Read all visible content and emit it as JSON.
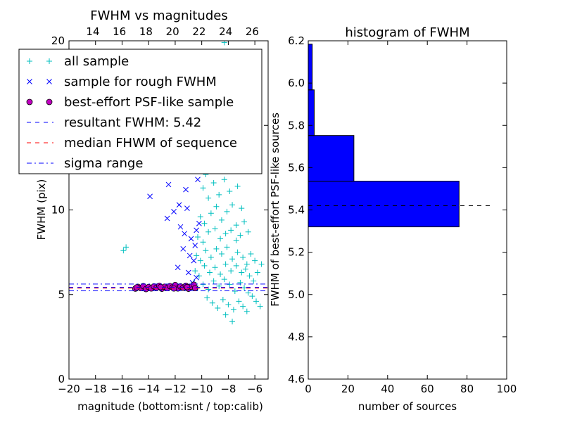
{
  "chart_data": [
    {
      "type": "scatter",
      "title": "FWHM vs magnitudes",
      "xlabel": "magnitude (bottom:isnt / top:calib)",
      "ylabel": "FWHM (pix)",
      "xlim": [
        -20,
        -5
      ],
      "ylim": [
        0,
        20
      ],
      "x_ticks": [
        -20,
        -18,
        -16,
        -14,
        -12,
        -10,
        -8,
        -6
      ],
      "x_tick_labels": [
        "−20",
        "−18",
        "−16",
        "−14",
        "−12",
        "−10",
        "−8",
        "−6"
      ],
      "y_ticks": [
        0,
        5,
        10,
        15,
        20
      ],
      "y_tick_labels": [
        "0",
        "5",
        "10",
        "15",
        "20"
      ],
      "top_axis_ticks": [
        14,
        16,
        18,
        20,
        22,
        24,
        26
      ],
      "top_axis_offset": 32.2,
      "legend": {
        "position": "upper-left",
        "entries": [
          {
            "label": "all sample",
            "marker": "plus",
            "color": "#00bfbf"
          },
          {
            "label": "sample for rough FWHM",
            "marker": "x",
            "color": "#0000ff"
          },
          {
            "label": "best-effort PSF-like sample",
            "marker": "circle",
            "color": "#bf00bf"
          },
          {
            "label": "resultant FWHM: 5.42",
            "line": "dashed",
            "color": "#0000ff"
          },
          {
            "label": "median FHWM of sequence",
            "line": "dashed",
            "color": "#ff0000"
          },
          {
            "label": "sigma range",
            "line": "dashdot",
            "color": "#0000ff"
          }
        ]
      },
      "hlines": [
        {
          "y": 5.42,
          "style": "dashed",
          "color": "#0000ff"
        },
        {
          "y": 5.38,
          "style": "dashed",
          "color": "#ff0000"
        },
        {
          "y": 5.62,
          "style": "dashdot",
          "color": "#0000ff"
        },
        {
          "y": 5.22,
          "style": "dashdot",
          "color": "#0000ff"
        }
      ],
      "series": [
        {
          "name": "all sample",
          "marker": "plus",
          "color": "#00bfbf",
          "points": [
            [
              -15.9,
              7.6
            ],
            [
              -15.7,
              7.8
            ],
            [
              -10.2,
              17.3
            ],
            [
              -9.9,
              16.1
            ],
            [
              -9.4,
              18.4
            ],
            [
              -8.9,
              19.2
            ],
            [
              -8.3,
              19.9
            ],
            [
              -8.1,
              18.6
            ],
            [
              -9.6,
              14.9
            ],
            [
              -9.0,
              15.3
            ],
            [
              -8.6,
              14.7
            ],
            [
              -10.0,
              12.8
            ],
            [
              -9.7,
              12.1
            ],
            [
              -9.2,
              13.4
            ],
            [
              -8.8,
              12.9
            ],
            [
              -8.4,
              13.6
            ],
            [
              -9.9,
              11.3
            ],
            [
              -9.5,
              10.7
            ],
            [
              -9.1,
              11.6
            ],
            [
              -8.7,
              10.9
            ],
            [
              -8.3,
              11.8
            ],
            [
              -7.9,
              11.1
            ],
            [
              -10.1,
              9.6
            ],
            [
              -9.8,
              9.2
            ],
            [
              -9.3,
              9.8
            ],
            [
              -8.9,
              10.2
            ],
            [
              -8.5,
              9.4
            ],
            [
              -8.1,
              9.9
            ],
            [
              -7.7,
              10.3
            ],
            [
              -7.4,
              9.1
            ],
            [
              -10.3,
              8.4
            ],
            [
              -9.9,
              8.1
            ],
            [
              -9.5,
              8.7
            ],
            [
              -9.0,
              8.9
            ],
            [
              -8.6,
              8.3
            ],
            [
              -8.2,
              8.6
            ],
            [
              -7.8,
              8.8
            ],
            [
              -7.4,
              8.2
            ],
            [
              -7.1,
              8.5
            ],
            [
              -10.4,
              7.3
            ],
            [
              -10.1,
              7.0
            ],
            [
              -9.7,
              7.6
            ],
            [
              -9.3,
              7.2
            ],
            [
              -8.9,
              7.7
            ],
            [
              -8.5,
              7.4
            ],
            [
              -8.1,
              7.8
            ],
            [
              -7.7,
              7.1
            ],
            [
              -7.3,
              7.5
            ],
            [
              -6.9,
              7.2
            ],
            [
              -6.6,
              6.8
            ],
            [
              -10.5,
              6.4
            ],
            [
              -10.2,
              6.1
            ],
            [
              -9.8,
              6.7
            ],
            [
              -9.4,
              6.3
            ],
            [
              -9.0,
              6.6
            ],
            [
              -8.6,
              6.2
            ],
            [
              -8.2,
              6.8
            ],
            [
              -7.8,
              6.4
            ],
            [
              -7.4,
              6.7
            ],
            [
              -7.0,
              6.3
            ],
            [
              -6.7,
              6.5
            ],
            [
              -6.4,
              6.1
            ],
            [
              -6.1,
              5.8
            ],
            [
              -5.8,
              6.3
            ],
            [
              -5.5,
              6.8
            ],
            [
              -10.6,
              5.7
            ],
            [
              -10.3,
              5.4
            ],
            [
              -9.9,
              5.6
            ],
            [
              -9.5,
              5.3
            ],
            [
              -9.1,
              5.8
            ],
            [
              -8.7,
              5.5
            ],
            [
              -8.3,
              5.9
            ],
            [
              -7.9,
              5.6
            ],
            [
              -7.5,
              5.2
            ],
            [
              -7.1,
              5.7
            ],
            [
              -6.8,
              5.4
            ],
            [
              -6.5,
              5.1
            ],
            [
              -6.2,
              4.9
            ],
            [
              -5.9,
              4.6
            ],
            [
              -5.6,
              4.3
            ],
            [
              -9.6,
              4.8
            ],
            [
              -9.2,
              4.5
            ],
            [
              -8.8,
              4.2
            ],
            [
              -8.4,
              4.7
            ],
            [
              -8.0,
              4.4
            ],
            [
              -7.6,
              4.1
            ],
            [
              -7.2,
              4.6
            ],
            [
              -6.9,
              4.3
            ],
            [
              -7.7,
              3.4
            ],
            [
              -8.2,
              3.8
            ],
            [
              -6.6,
              4.0
            ],
            [
              -9.7,
              16.8
            ],
            [
              -8.8,
              17.1
            ],
            [
              -7.9,
              16.2
            ],
            [
              -8.0,
              14.2
            ],
            [
              -7.6,
              12.4
            ],
            [
              -7.3,
              11.4
            ],
            [
              -7.0,
              10.1
            ],
            [
              -6.8,
              9.3
            ],
            [
              -6.5,
              8.7
            ],
            [
              -6.3,
              7.4
            ],
            [
              -6.0,
              7.0
            ]
          ]
        },
        {
          "name": "sample for rough FWHM",
          "marker": "x",
          "color": "#0000ff",
          "points": [
            [
              -12.3,
              15.2
            ],
            [
              -11.9,
              13.6
            ],
            [
              -11.5,
              12.3
            ],
            [
              -11.7,
              10.3
            ],
            [
              -11.1,
              10.1
            ],
            [
              -12.1,
              9.9
            ],
            [
              -12.6,
              9.5
            ],
            [
              -11.6,
              9.0
            ],
            [
              -11.3,
              8.6
            ],
            [
              -10.8,
              8.3
            ],
            [
              -10.5,
              7.9
            ],
            [
              -11.4,
              7.7
            ],
            [
              -10.9,
              7.3
            ],
            [
              -10.6,
              7.0
            ],
            [
              -11.8,
              6.6
            ],
            [
              -11.0,
              6.3
            ],
            [
              -10.4,
              6.0
            ],
            [
              -10.7,
              5.7
            ],
            [
              -13.9,
              10.8
            ],
            [
              -12.5,
              11.5
            ],
            [
              -10.3,
              11.8
            ],
            [
              -10.2,
              9.2
            ],
            [
              -10.4,
              8.8
            ],
            [
              -11.2,
              11.2
            ]
          ]
        },
        {
          "name": "best-effort PSF-like sample",
          "marker": "circle",
          "color": "#bf00bf",
          "points": [
            [
              -15.0,
              5.35
            ],
            [
              -14.8,
              5.45
            ],
            [
              -14.6,
              5.38
            ],
            [
              -14.4,
              5.5
            ],
            [
              -14.2,
              5.32
            ],
            [
              -14.0,
              5.44
            ],
            [
              -13.8,
              5.36
            ],
            [
              -13.6,
              5.48
            ],
            [
              -13.4,
              5.4
            ],
            [
              -13.2,
              5.52
            ],
            [
              -13.0,
              5.34
            ],
            [
              -12.8,
              5.46
            ],
            [
              -12.6,
              5.38
            ],
            [
              -12.4,
              5.5
            ],
            [
              -12.2,
              5.42
            ],
            [
              -12.0,
              5.56
            ],
            [
              -11.8,
              5.36
            ],
            [
              -11.6,
              5.48
            ],
            [
              -11.4,
              5.4
            ],
            [
              -11.2,
              5.52
            ],
            [
              -11.0,
              5.34
            ],
            [
              -10.8,
              5.46
            ],
            [
              -10.6,
              5.58
            ],
            [
              -10.5,
              5.38
            ],
            [
              -14.9,
              5.42
            ],
            [
              -13.1,
              5.44
            ],
            [
              -12.1,
              5.36
            ],
            [
              -11.1,
              5.44
            ]
          ]
        }
      ]
    },
    {
      "type": "bar",
      "orientation": "horizontal",
      "title": "histogram of FWHM",
      "xlabel": "number of sources",
      "ylabel": "FWHM of best-effort PSF-like sources",
      "xlim": [
        0,
        100
      ],
      "ylim": [
        4.6,
        6.2
      ],
      "x_ticks": [
        0,
        20,
        40,
        60,
        80,
        100
      ],
      "y_ticks": [
        4.6,
        4.8,
        5.0,
        5.2,
        5.4,
        5.6,
        5.8,
        6.0,
        6.2
      ],
      "y_tick_labels": [
        "4.6",
        "4.8",
        "5.0",
        "5.2",
        "5.4",
        "5.6",
        "5.8",
        "6.0",
        "6.2"
      ],
      "color": "#0000ff",
      "bins": [
        {
          "y0": 5.32,
          "y1": 5.536,
          "count": 76
        },
        {
          "y0": 5.536,
          "y1": 5.752,
          "count": 23
        },
        {
          "y0": 5.752,
          "y1": 5.968,
          "count": 3
        },
        {
          "y0": 5.968,
          "y1": 6.184,
          "count": 2
        }
      ],
      "hline": {
        "y": 5.42,
        "x_end": 93,
        "style": "dashed",
        "color": "#000000"
      }
    }
  ]
}
